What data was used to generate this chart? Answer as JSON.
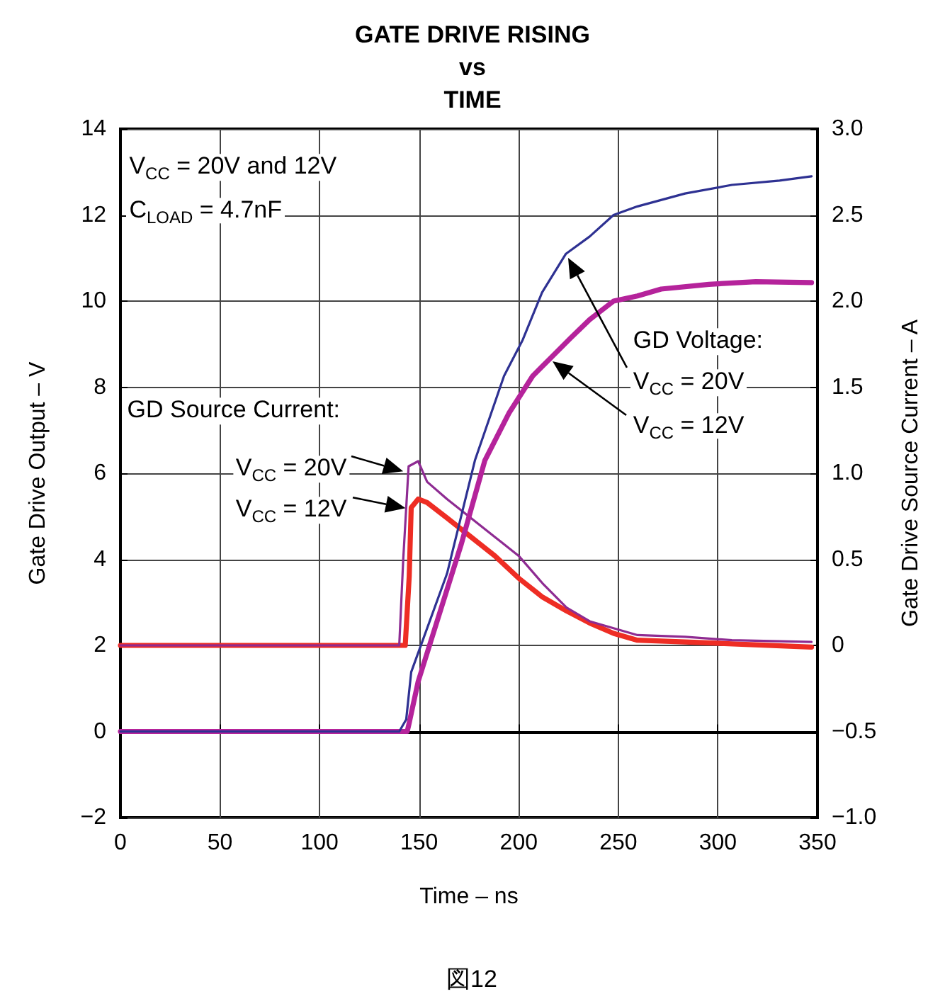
{
  "chart_data": {
    "type": "line",
    "title": "GATE DRIVE RISING\nvs\nTIME",
    "xlabel": "Time – ns",
    "ylabel": "Gate Drive Output – V",
    "y2label": "Gate Drive Source Current – A",
    "annotations": [
      "V$_{CC}$ = 20V and 12V",
      "C$_{LOAD}$ = 4.7nF",
      "GD Source Current:",
      "V$_{CC}$ = 20V",
      "V$_{CC}$ = 12V",
      "GD Voltage:",
      "V$_{CC}$ = 20V",
      "V$_{CC}$ = 12V",
      "図12"
    ],
    "series": [
      {
        "color": "#ee2d24",
        "axis": "y2",
        "x": [
          0,
          50,
          100,
          143,
          145,
          146,
          149.5,
          154,
          164,
          176,
          188,
          200,
          212,
          224,
          235.6,
          247.6,
          259.6,
          283.5,
          347
        ],
        "values": [
          0,
          0,
          0,
          0,
          0.4,
          0.8,
          0.85,
          0.83,
          0.74,
          0.63,
          0.52,
          0.39,
          0.28,
          0.2,
          0.13,
          0.07,
          0.03,
          0.02,
          -0.01
        ]
      },
      {
        "color": "#8e2b92",
        "axis": "y2",
        "x": [
          0,
          50,
          100,
          140,
          142,
          144.7,
          149.5,
          154,
          164,
          176,
          188,
          200,
          212,
          224,
          235.6,
          259.6,
          283.5,
          307,
          347
        ],
        "values": [
          0,
          0,
          0,
          0,
          0.5,
          1.04,
          1.07,
          0.95,
          0.85,
          0.74,
          0.63,
          0.52,
          0.36,
          0.22,
          0.14,
          0.06,
          0.05,
          0.03,
          0.02
        ]
      },
      {
        "color": "#b5239b",
        "x": [
          0,
          50,
          100,
          144,
          145,
          149.5,
          171,
          183,
          195,
          207,
          216.5,
          226,
          235.6,
          247.6,
          259.6,
          271.5,
          295.5,
          319,
          347
        ],
        "values": [
          0,
          0,
          0,
          0,
          0.2,
          1.16,
          4.33,
          6.3,
          7.39,
          8.26,
          8.7,
          9.14,
          9.57,
          10.0,
          10.12,
          10.28,
          10.39,
          10.45,
          10.43
        ]
      },
      {
        "color": "#2e3192",
        "x": [
          0,
          50,
          100,
          140,
          143.5,
          146,
          164,
          178,
          192.6,
          202,
          211.7,
          223.7,
          235.6,
          247.6,
          259.6,
          283.5,
          307,
          331,
          347
        ],
        "values": [
          0,
          0,
          0,
          0,
          0.28,
          1.38,
          3.67,
          6.3,
          8.26,
          9.1,
          10.2,
          11.1,
          11.5,
          12.0,
          12.2,
          12.5,
          12.7,
          12.8,
          12.9
        ]
      }
    ],
    "xlim": [
      0,
      350
    ],
    "xticks": [
      0,
      50,
      100,
      150,
      200,
      250,
      300,
      350
    ],
    "ylim": [
      -2,
      14
    ],
    "yticks": [
      {
        "value": -2,
        "label": "−2"
      },
      0,
      2,
      4,
      6,
      8,
      10,
      12,
      14
    ],
    "y2lim": [
      -1,
      3
    ],
    "y2ticks": [
      {
        "value": -1,
        "label": "−1.0"
      },
      {
        "value": -0.5,
        "label": "−0.5"
      },
      0,
      0.5,
      {
        "value": 1,
        "label": "1.0"
      },
      1.5,
      {
        "value": 2,
        "label": "2.0"
      },
      2.5,
      {
        "value": 3,
        "label": "3.0"
      }
    ],
    "grid": true,
    "marker": "none",
    "line_style": "solid"
  }
}
